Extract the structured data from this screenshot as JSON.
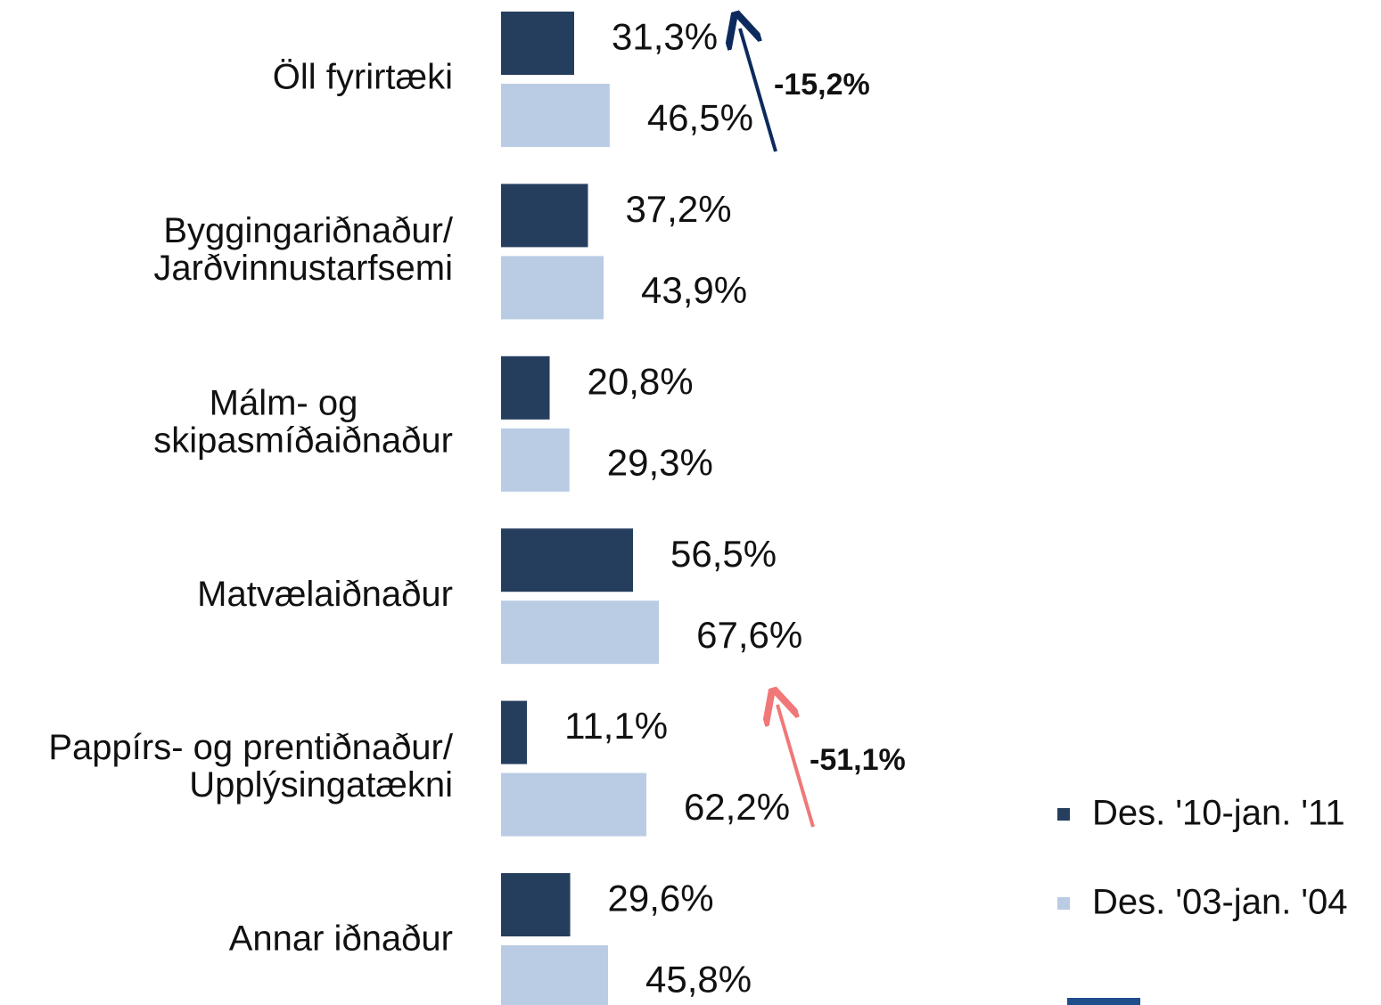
{
  "chart_data": {
    "type": "bar",
    "orientation": "horizontal",
    "categories": [
      [
        "Öll fyrirtæki"
      ],
      [
        "Byggingariðnaður/",
        "Jarðvinnustarfsemi"
      ],
      [
        "Málm- og",
        "skipasmíðaiðnaður"
      ],
      [
        "Matvælaiðnaður"
      ],
      [
        "Pappírs- og prentiðnaður/",
        "Upplýsingatækni"
      ],
      [
        "Annar iðnaður"
      ]
    ],
    "series": [
      {
        "name": "Des. '10-jan. '11",
        "color": "#263e5e",
        "values": [
          31.3,
          37.2,
          20.8,
          56.5,
          11.1,
          29.6
        ],
        "value_labels": [
          "31,3%",
          "37,2%",
          "20,8%",
          "56,5%",
          "11,1%",
          "29,6%"
        ]
      },
      {
        "name": "Des. '03-jan. '04",
        "color": "#b9cce4",
        "values": [
          46.5,
          43.9,
          29.3,
          67.6,
          62.2,
          45.8
        ],
        "value_labels": [
          "46,5%",
          "43,9%",
          "29,3%",
          "67,6%",
          "62,2%",
          "45,8%"
        ]
      }
    ],
    "annotations": [
      {
        "text": "-15,2%",
        "color": "#0d2a5e"
      },
      {
        "text": "-51,1%",
        "color": "#f07878"
      }
    ],
    "legend": "bottom-right"
  }
}
